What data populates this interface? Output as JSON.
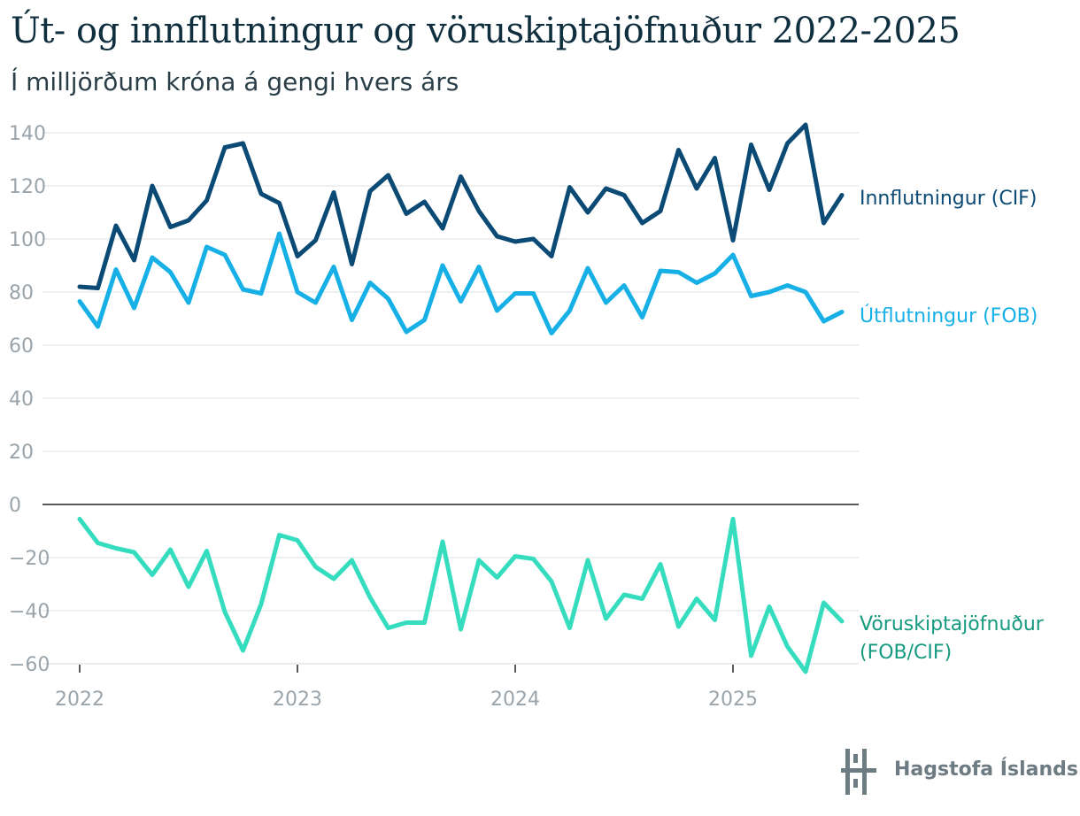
{
  "title": "Út- og innflutningur og vöruskiptajöfnuður 2022-2025",
  "subtitle": "Í milljörðum króna á gengi hvers árs",
  "logo": {
    "text": "Hagstofa Íslands",
    "icon": "hagstofa-logo-icon"
  },
  "colors": {
    "innflutningur": "#0b4a75",
    "utflutningur": "#16b0e6",
    "voruskiptajofnudur": "#35dcbd",
    "label_voruskiptajofnudur": "#159a80",
    "grid": "#e3e5e7",
    "zero_line": "#222222",
    "tick": "#9aa4ab"
  },
  "chart_data": {
    "type": "line",
    "x_unit": "month",
    "x_start": "2022-01",
    "x_end": "2025-07",
    "x_tick_labels": [
      "2022",
      "2023",
      "2024",
      "2025"
    ],
    "y_tick_labels": [
      "140",
      "120",
      "100",
      "80",
      "60",
      "40",
      "20",
      "0",
      "−20",
      "−40",
      "−60"
    ],
    "ylim": [
      -63,
      143
    ],
    "grid": true,
    "series": [
      {
        "name": "Innflutningur (CIF)",
        "label_lines": [
          "Innflutningur (CIF)"
        ],
        "color_key": "innflutningur",
        "values": [
          82,
          81.5,
          105,
          92,
          120,
          104.5,
          107,
          114.5,
          134.5,
          136,
          117,
          113.5,
          93.5,
          99.5,
          117.5,
          90.5,
          118,
          124,
          109.5,
          114,
          104,
          123.5,
          110.5,
          101,
          99,
          100,
          93.5,
          119.5,
          110,
          119,
          116.5,
          106,
          110.5,
          133.5,
          119,
          130.5,
          99.5,
          135.5,
          118.5,
          136,
          143,
          106,
          116.5
        ]
      },
      {
        "name": "Útflutningur (FOB)",
        "label_lines": [
          "Útflutningur (FOB)"
        ],
        "color_key": "utflutningur",
        "values": [
          76.5,
          67,
          88.5,
          74,
          93,
          87.5,
          76,
          97,
          94,
          81,
          79.5,
          102,
          80,
          76,
          89.5,
          69.5,
          83.5,
          77.5,
          65,
          69.5,
          90,
          76.5,
          89.5,
          73,
          79.5,
          79.5,
          64.5,
          73,
          89,
          76,
          82.5,
          70.5,
          88,
          87.5,
          83.5,
          87,
          94,
          78.5,
          80,
          82.5,
          80,
          69,
          72.5
        ]
      },
      {
        "name": "Vöruskiptajöfnuður (FOB/CIF)",
        "label_lines": [
          "Vöruskiptajöfnuður",
          "(FOB/CIF)"
        ],
        "color_key": "voruskiptajofnudur",
        "label_color_key": "label_voruskiptajofnudur",
        "values": [
          -5.5,
          -14.5,
          -16.5,
          -18,
          -26.5,
          -17,
          -31,
          -17.5,
          -40.5,
          -55,
          -37.5,
          -11.5,
          -13.5,
          -23.5,
          -28,
          -21,
          -35,
          -46.5,
          -44.5,
          -44.5,
          -14,
          -47,
          -21,
          -27.5,
          -19.5,
          -20.5,
          -29,
          -46.5,
          -21,
          -43,
          -34,
          -35.5,
          -22.5,
          -46,
          -35.5,
          -43.5,
          -5.5,
          -57,
          -38.5,
          -53.5,
          -63,
          -37,
          -44
        ]
      }
    ]
  }
}
